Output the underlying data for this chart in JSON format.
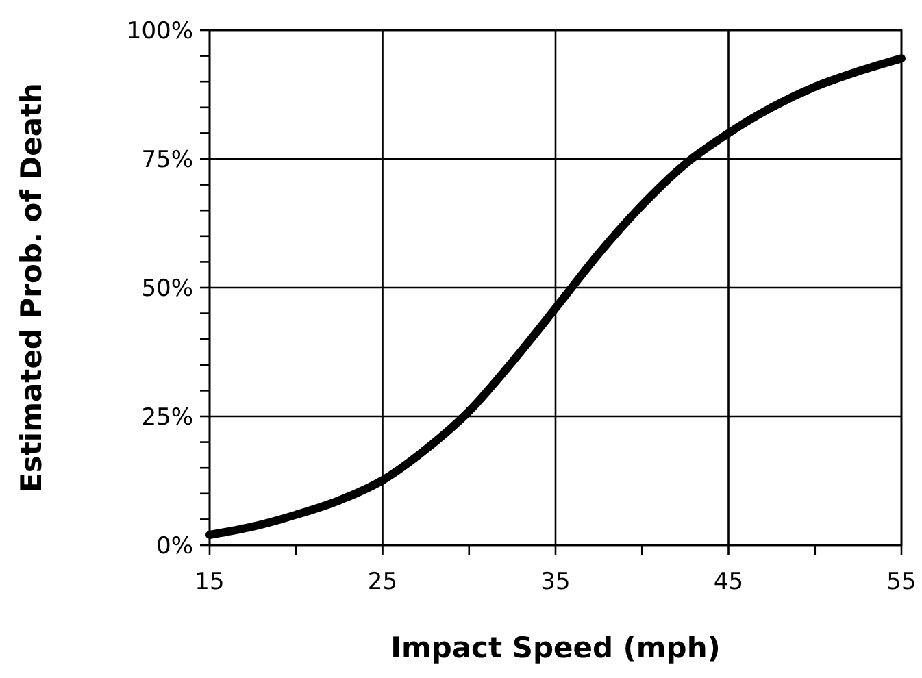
{
  "chart_data": {
    "type": "line",
    "xlabel": "Impact Speed (mph)",
    "ylabel": "Estimated Prob. of Death",
    "x": [
      15,
      17.5,
      20,
      22.5,
      25,
      27.5,
      30,
      32.5,
      35,
      37.5,
      40,
      42.5,
      45,
      47.5,
      50,
      52.5,
      55
    ],
    "series": [
      {
        "color": "#000000",
        "values": [
          2,
          3.6,
          5.9,
          8.7,
          12.6,
          18.6,
          26,
          35.6,
          46,
          56.6,
          66,
          74,
          80,
          85,
          89,
          92,
          94.5
        ]
      }
    ],
    "xlim": [
      15,
      55
    ],
    "ylim": [
      0,
      100
    ],
    "xticks": [
      15,
      {
        "value": 20,
        "label": null
      },
      25,
      {
        "value": 30,
        "label": null
      },
      35,
      {
        "value": 40,
        "label": null
      },
      45,
      {
        "value": 50,
        "label": null
      },
      55
    ],
    "yticks": [
      {
        "value": 0,
        "label": "0%"
      },
      {
        "value": 5,
        "label": null
      },
      {
        "value": 10,
        "label": null
      },
      {
        "value": 15,
        "label": null
      },
      {
        "value": 20,
        "label": null
      },
      {
        "value": 25,
        "label": "25%"
      },
      {
        "value": 30,
        "label": null
      },
      {
        "value": 35,
        "label": null
      },
      {
        "value": 40,
        "label": null
      },
      {
        "value": 45,
        "label": null
      },
      {
        "value": 50,
        "label": "50%"
      },
      {
        "value": 55,
        "label": null
      },
      {
        "value": 60,
        "label": null
      },
      {
        "value": 65,
        "label": null
      },
      {
        "value": 70,
        "label": null
      },
      {
        "value": 75,
        "label": "75%"
      },
      {
        "value": 80,
        "label": null
      },
      {
        "value": 85,
        "label": null
      },
      {
        "value": 90,
        "label": null
      },
      {
        "value": 95,
        "label": null
      },
      {
        "value": 100,
        "label": "100%"
      }
    ],
    "grid": true,
    "marker": "none",
    "line_style": "solid"
  }
}
